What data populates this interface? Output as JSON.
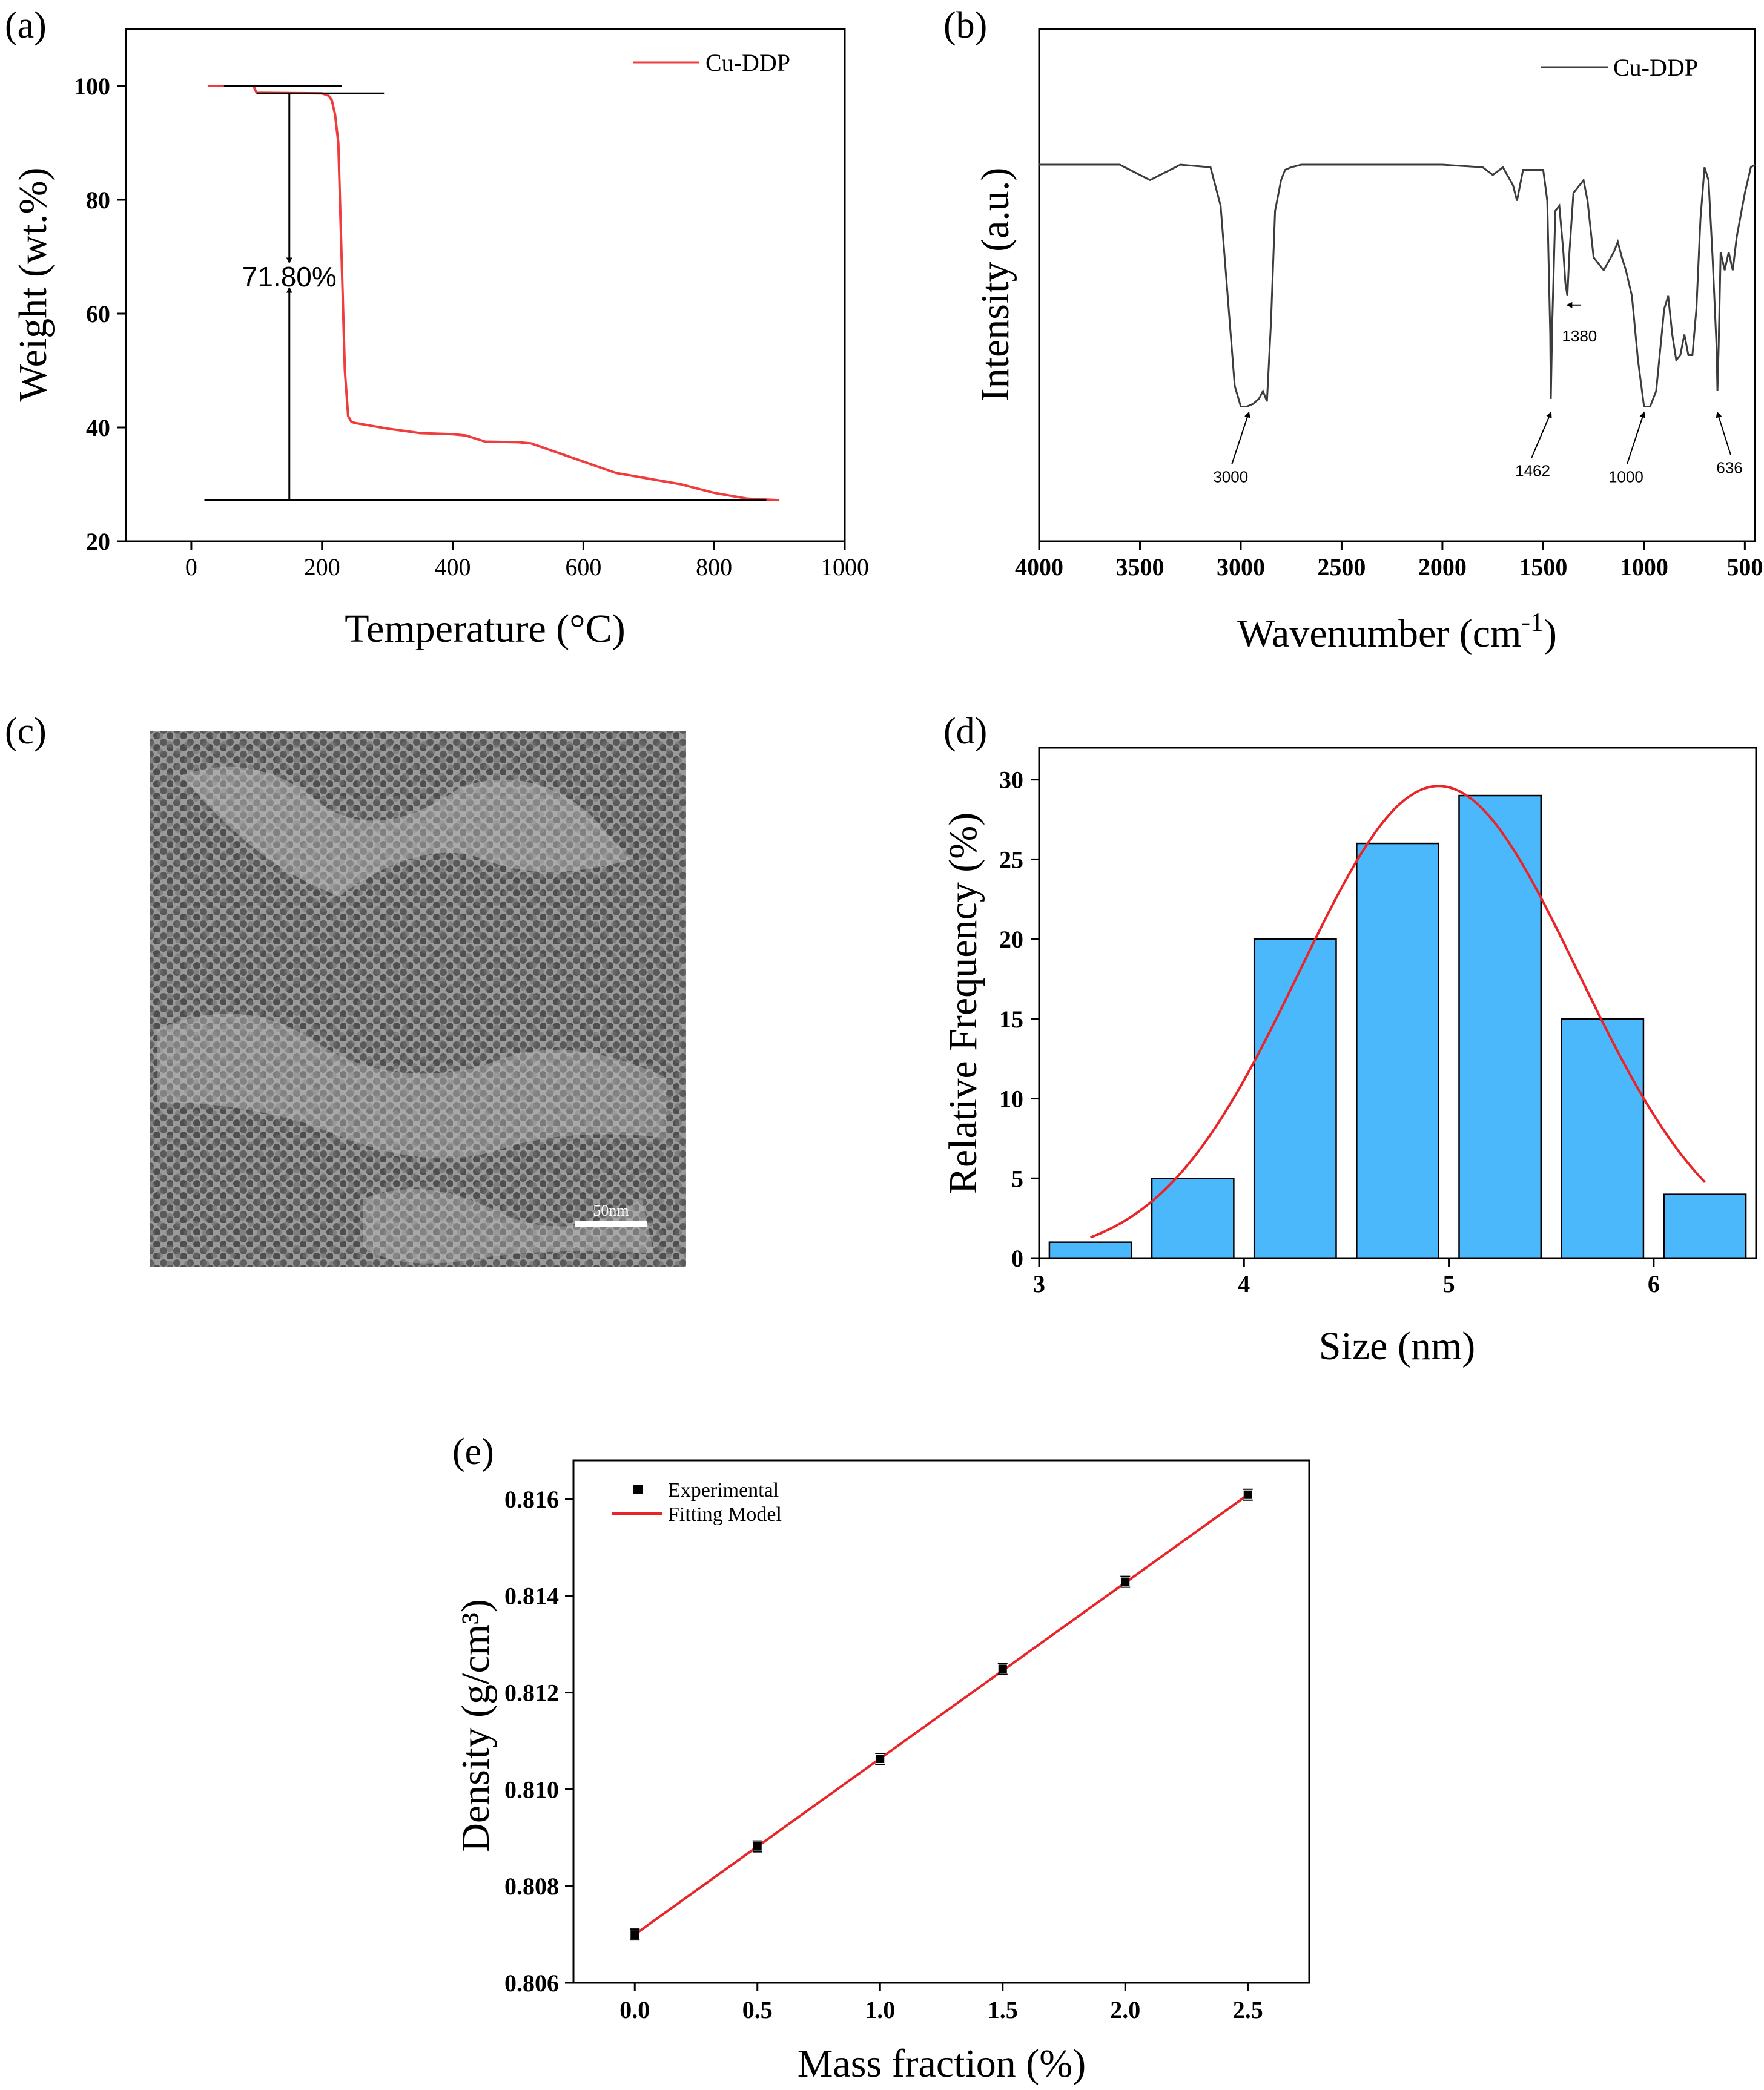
{
  "chart_data": [
    {
      "id": "a",
      "type": "line",
      "panel_label": "(a)",
      "xlabel": "Temperature (°C)",
      "ylabel": "Weight (wt.%)",
      "xlim": [
        -100,
        1000
      ],
      "ylim": [
        20,
        110
      ],
      "xticks": [
        0,
        200,
        400,
        600,
        800,
        1000
      ],
      "yticks": [
        20,
        40,
        60,
        80,
        100
      ],
      "legend": [
        "Cu-DDP"
      ],
      "series": [
        {
          "name": "Cu-DDP",
          "color": "#f03c3c",
          "x": [
            25,
            95,
            100,
            200,
            210,
            215,
            220,
            225,
            230,
            235,
            240,
            245,
            250,
            300,
            350,
            400,
            420,
            450,
            500,
            520,
            550,
            600,
            650,
            700,
            750,
            800,
            850,
            900
          ],
          "y": [
            100,
            100,
            98.8,
            98.7,
            98.3,
            97.5,
            95,
            90,
            70,
            50,
            42,
            41,
            40.8,
            39.8,
            39.0,
            38.8,
            38.6,
            37.5,
            37.4,
            37.2,
            36,
            34,
            32,
            31,
            30,
            28.5,
            27.5,
            27.2
          ]
        }
      ],
      "annotation": "71.80%"
    },
    {
      "id": "b",
      "type": "line",
      "panel_label": "(b)",
      "xlabel": "Wavenumber (cm",
      "xlabel_sup": "-1",
      "xlabel_end": ")",
      "ylabel": "Intensity (a.u.)",
      "xlim": [
        4000,
        450
      ],
      "xticks": [
        4000,
        3500,
        3000,
        2500,
        2000,
        1500,
        1000,
        500
      ],
      "legend": [
        "Cu-DDP"
      ],
      "series": [
        {
          "name": "Cu-DDP",
          "color": "#3c3c3c",
          "x": [
            4000,
            3800,
            3600,
            3500,
            3450,
            3400,
            3300,
            3150,
            3100,
            3060,
            3030,
            3000,
            2970,
            2940,
            2910,
            2890,
            2870,
            2850,
            2830,
            2800,
            2780,
            2750,
            2700,
            2500,
            2000,
            1800,
            1750,
            1700,
            1650,
            1630,
            1600,
            1500,
            1480,
            1465,
            1462,
            1455,
            1440,
            1420,
            1400,
            1390,
            1380,
            1370,
            1350,
            1300,
            1280,
            1250,
            1200,
            1150,
            1130,
            1110,
            1090,
            1060,
            1030,
            1000,
            970,
            940,
            900,
            880,
            860,
            840,
            820,
            800,
            780,
            760,
            740,
            720,
            700,
            680,
            660,
            640,
            636,
            630,
            620,
            600,
            580,
            560,
            540,
            500,
            470,
            450
          ],
          "y": [
            0.96,
            0.96,
            0.96,
            0.92,
            0.9,
            0.92,
            0.96,
            0.95,
            0.8,
            0.4,
            0.1,
            0.02,
            0.02,
            0.03,
            0.05,
            0.08,
            0.04,
            0.35,
            0.78,
            0.9,
            0.94,
            0.95,
            0.96,
            0.96,
            0.96,
            0.95,
            0.92,
            0.95,
            0.88,
            0.82,
            0.94,
            0.94,
            0.82,
            0.3,
            0.05,
            0.35,
            0.78,
            0.8,
            0.62,
            0.5,
            0.45,
            0.62,
            0.85,
            0.9,
            0.82,
            0.6,
            0.55,
            0.62,
            0.66,
            0.6,
            0.55,
            0.45,
            0.2,
            0.02,
            0.02,
            0.08,
            0.4,
            0.45,
            0.3,
            0.2,
            0.22,
            0.3,
            0.22,
            0.22,
            0.4,
            0.75,
            0.95,
            0.9,
            0.6,
            0.25,
            0.08,
            0.25,
            0.62,
            0.55,
            0.62,
            0.55,
            0.68,
            0.85,
            0.95,
            0.96
          ]
        }
      ],
      "annotations": [
        {
          "label": "3000",
          "x": 2960
        },
        {
          "label": "1462",
          "x": 1462
        },
        {
          "label": "1380",
          "x": 1380
        },
        {
          "label": "1000",
          "x": 1000
        },
        {
          "label": "636",
          "x": 636
        }
      ]
    },
    {
      "id": "d",
      "type": "bar",
      "panel_label": "(d)",
      "xlabel": "Size (nm)",
      "ylabel": "Relative Frequency (%)",
      "xlim": [
        3,
        6.5
      ],
      "ylim": [
        0,
        32
      ],
      "xticks": [
        3,
        4,
        5,
        6
      ],
      "yticks": [
        0,
        5,
        10,
        15,
        20,
        25,
        30
      ],
      "bar_centers": [
        3.25,
        3.75,
        4.25,
        4.75,
        5.25,
        5.75,
        6.25
      ],
      "bar_width": 0.4,
      "values": [
        1,
        5,
        20,
        26,
        29,
        15,
        4
      ],
      "bar_color": "#4cb8fc",
      "fit": {
        "type": "gaussian",
        "mu": 4.95,
        "sigma": 0.68,
        "amplitude": 29.6,
        "x_range": [
          3.25,
          6.25
        ],
        "color": "#e8262a"
      }
    },
    {
      "id": "e",
      "type": "scatter",
      "panel_label": "(e)",
      "xlabel": "Mass fraction (%)",
      "ylabel": "Density (g/cm³)",
      "xlim": [
        -0.25,
        2.75
      ],
      "ylim": [
        0.806,
        0.8168
      ],
      "xticks": [
        "0.0",
        "0.5",
        "1.0",
        "1.5",
        "2.0",
        "2.5"
      ],
      "yticks": [
        "0.806",
        "0.808",
        "0.810",
        "0.812",
        "0.814",
        "0.816"
      ],
      "legend": [
        "Experimental",
        "Fitting Model"
      ],
      "x": [
        0.0,
        0.5,
        1.0,
        1.5,
        2.0,
        2.5
      ],
      "y": [
        0.807,
        0.80882,
        0.81063,
        0.81249,
        0.81429,
        0.81609
      ],
      "fit_line": {
        "x": [
          0,
          2.5
        ],
        "y": [
          0.807,
          0.81609
        ],
        "color": "#e8262a"
      }
    }
  ],
  "image_panel": {
    "panel_label": "(c)",
    "scale_bar": "50nm"
  }
}
